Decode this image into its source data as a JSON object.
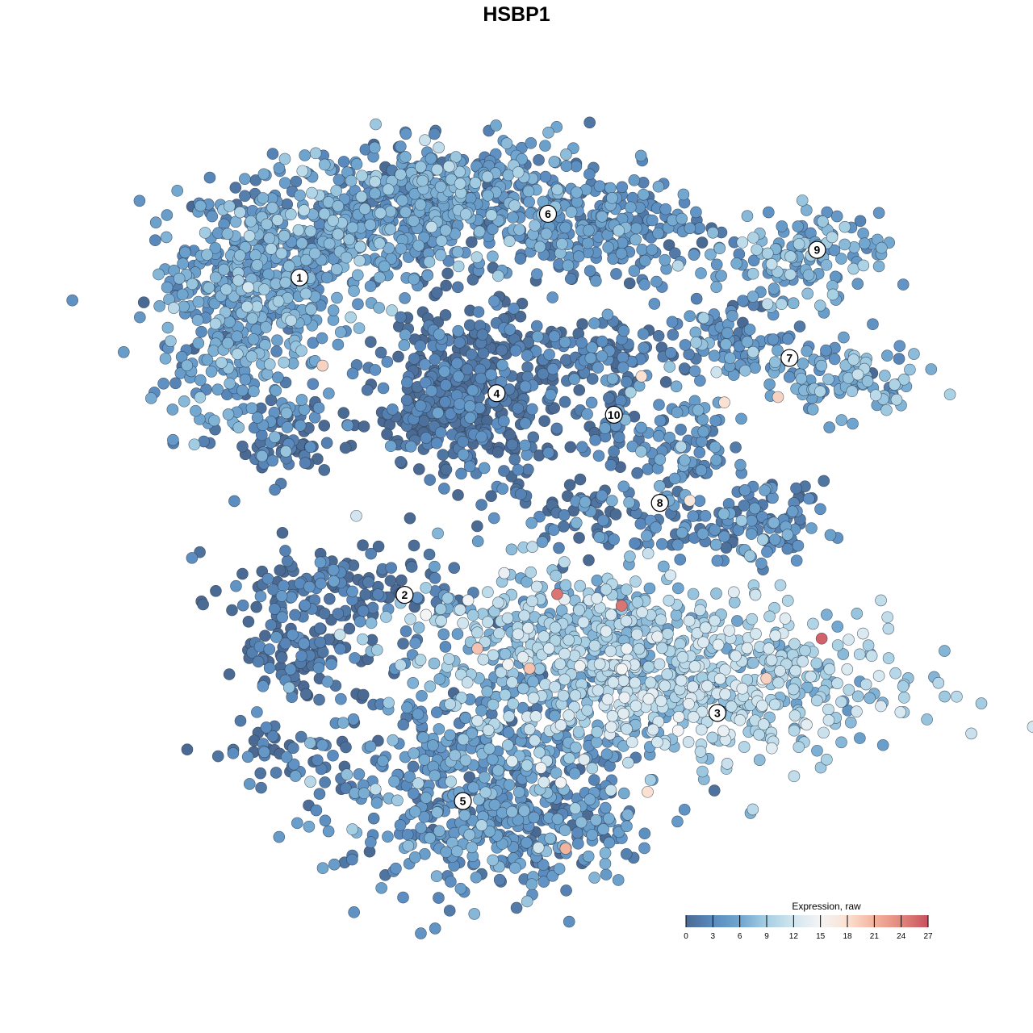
{
  "chart_data": {
    "type": "scatter",
    "title": "HSBP1",
    "xlabel": "",
    "ylabel": "",
    "xlim": [
      0,
      100
    ],
    "ylim": [
      0,
      100
    ],
    "grid": false,
    "axes_visible": false,
    "legend": {
      "title": "Expression, raw",
      "placement": "bottom-right",
      "ticks": [
        "0",
        "3",
        "6",
        "9",
        "12",
        "15",
        "18",
        "21",
        "24",
        "27"
      ],
      "range": [
        0,
        27
      ],
      "colors": [
        {
          "value": 0,
          "color": "#4a6a93"
        },
        {
          "value": 3,
          "color": "#5a8bbf"
        },
        {
          "value": 6,
          "color": "#70a6cf"
        },
        {
          "value": 9,
          "color": "#a6cfe3"
        },
        {
          "value": 12,
          "color": "#d3e6ef"
        },
        {
          "value": 15,
          "color": "#f4f4f4"
        },
        {
          "value": 18,
          "color": "#fbe1d2"
        },
        {
          "value": 21,
          "color": "#f3b39d"
        },
        {
          "value": 24,
          "color": "#e2877c"
        },
        {
          "value": 27,
          "color": "#c8505f"
        }
      ]
    },
    "clusters": [
      {
        "label": "1",
        "label_pos": [
          19.6,
          79.6
        ],
        "blobs": [
          {
            "center": [
              15.3,
              81.1
            ],
            "sd": [
              6.3,
              5.3
            ],
            "n": 350,
            "mean_expr": 5
          },
          {
            "center": [
              12.1,
              68.4
            ],
            "sd": [
              5.3,
              6.3
            ],
            "n": 200,
            "mean_expr": 5
          },
          {
            "center": [
              27.9,
              86.3
            ],
            "sd": [
              7.4,
              4.2
            ],
            "n": 250,
            "mean_expr": 5
          },
          {
            "center": [
              17.4,
              57.9
            ],
            "sd": [
              3.7,
              2.1
            ],
            "n": 60,
            "mean_expr": 1
          },
          {
            "center": [
              37.4,
              91.6
            ],
            "sd": [
              5.3,
              3.2
            ],
            "n": 150,
            "mean_expr": 5
          }
        ]
      },
      {
        "label": "2",
        "label_pos": [
          33.3,
          38.2
        ],
        "blobs": [
          {
            "center": [
              24.7,
              37.9
            ],
            "sd": [
              7.4,
              3.2
            ],
            "n": 150,
            "mean_expr": 1
          },
          {
            "center": [
              19.5,
              30.5
            ],
            "sd": [
              4.2,
              3.2
            ],
            "n": 80,
            "mean_expr": 0.5
          },
          {
            "center": [
              16.3,
              17.9
            ],
            "sd": [
              4.2,
              2.1
            ],
            "n": 40,
            "mean_expr": 1
          }
        ]
      },
      {
        "label": "3",
        "label_pos": [
          74.1,
          22.8
        ],
        "blobs": [
          {
            "center": [
              70.0,
              26.3
            ],
            "sd": [
              13.7,
              5.3
            ],
            "n": 600,
            "mean_expr": 9.5
          },
          {
            "center": [
              54.2,
              33.7
            ],
            "sd": [
              10.5,
              4.2
            ],
            "n": 300,
            "mean_expr": 8
          }
        ]
      },
      {
        "label": "4",
        "label_pos": [
          45.3,
          64.5
        ],
        "blobs": [
          {
            "center": [
              41.6,
              64.2
            ],
            "sd": [
              5.8,
              5.8
            ],
            "n": 450,
            "mean_expr": 0.5
          }
        ]
      },
      {
        "label": "5",
        "label_pos": [
          40.9,
          11.3
        ],
        "blobs": [
          {
            "center": [
              43.7,
              14.7
            ],
            "sd": [
              10.5,
              7.4
            ],
            "n": 500,
            "mean_expr": 4
          },
          {
            "center": [
              47.9,
              6.3
            ],
            "sd": [
              8.4,
              3.2
            ],
            "n": 150,
            "mean_expr": 4
          }
        ]
      },
      {
        "label": "6",
        "label_pos": [
          52.0,
          87.9
        ],
        "blobs": [
          {
            "center": [
              48.9,
              88.4
            ],
            "sd": [
              10.5,
              4.2
            ],
            "n": 350,
            "mean_expr": 4
          },
          {
            "center": [
              62.6,
              84.2
            ],
            "sd": [
              5.3,
              3.2
            ],
            "n": 100,
            "mean_expr": 3
          }
        ]
      },
      {
        "label": "7",
        "label_pos": [
          83.5,
          69.1
        ],
        "blobs": [
          {
            "center": [
              77.4,
              71.6
            ],
            "sd": [
              5.3,
              2.6
            ],
            "n": 100,
            "mean_expr": 4
          },
          {
            "center": [
              90.0,
              66.3
            ],
            "sd": [
              5.3,
              2.6
            ],
            "n": 100,
            "mean_expr": 6
          }
        ]
      },
      {
        "label": "8",
        "label_pos": [
          66.6,
          50.2
        ],
        "blobs": [
          {
            "center": [
              70.0,
              57.9
            ],
            "sd": [
              3.2,
              4.2
            ],
            "n": 80,
            "mean_expr": 4
          },
          {
            "center": [
              78.4,
              47.4
            ],
            "sd": [
              4.7,
              2.6
            ],
            "n": 120,
            "mean_expr": 3
          },
          {
            "center": [
              59.5,
              48.4
            ],
            "sd": [
              6.3,
              2.6
            ],
            "n": 80,
            "mean_expr": 2
          }
        ]
      },
      {
        "label": "9",
        "label_pos": [
          87.1,
          83.2
        ],
        "blobs": [
          {
            "center": [
              85.8,
              83.2
            ],
            "sd": [
              5.3,
              2.6
            ],
            "n": 120,
            "mean_expr": 6
          }
        ]
      },
      {
        "label": "10",
        "label_pos": [
          60.6,
          61.7
        ],
        "blobs": [
          {
            "center": [
              60.5,
              62.1
            ],
            "sd": [
              2.6,
              4.2
            ],
            "n": 60,
            "mean_expr": 2
          },
          {
            "center": [
              57.4,
              70.5
            ],
            "sd": [
              6.3,
              2.1
            ],
            "n": 80,
            "mean_expr": 1
          }
        ]
      }
    ],
    "highlight_points": [
      {
        "x": 53.2,
        "y": 38.3,
        "expr": 25
      },
      {
        "x": 61.6,
        "y": 36.8,
        "expr": 25
      },
      {
        "x": 87.7,
        "y": 32.5,
        "expr": 26
      },
      {
        "x": 22.6,
        "y": 68.1,
        "expr": 19
      },
      {
        "x": 54.3,
        "y": 5.1,
        "expr": 21
      },
      {
        "x": 49.6,
        "y": 28.6,
        "expr": 20
      },
      {
        "x": 42.8,
        "y": 31.2,
        "expr": 20
      },
      {
        "x": 80.5,
        "y": 27.3,
        "expr": 19
      },
      {
        "x": 64.2,
        "y": 66.7,
        "expr": 18
      },
      {
        "x": 75.0,
        "y": 63.3,
        "expr": 18
      },
      {
        "x": 82.0,
        "y": 64.0,
        "expr": 19
      },
      {
        "x": 70.5,
        "y": 50.5,
        "expr": 17
      },
      {
        "x": 65.0,
        "y": 12.5,
        "expr": 18
      },
      {
        "x": 27.0,
        "y": 48.5,
        "expr": 12
      }
    ]
  }
}
